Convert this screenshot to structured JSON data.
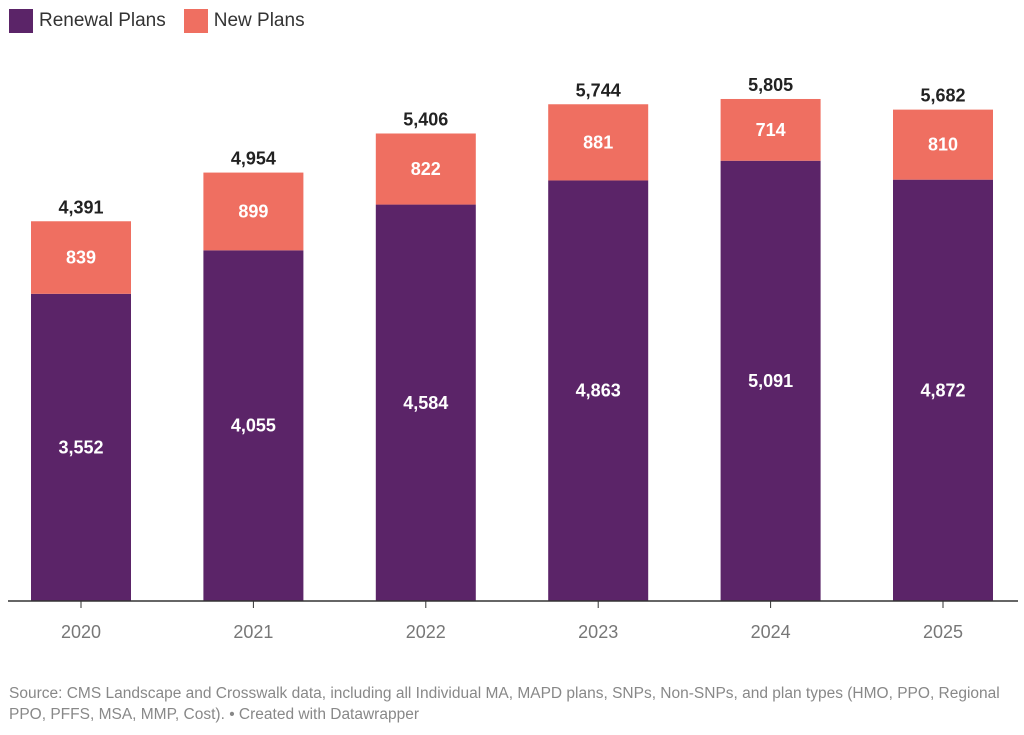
{
  "chart_data": {
    "type": "stacked-bar",
    "categories": [
      "2020",
      "2021",
      "2022",
      "2023",
      "2024",
      "2025"
    ],
    "series": [
      {
        "name": "Renewal Plans",
        "color": "#5b2468",
        "values": [
          3552,
          4055,
          4584,
          4863,
          5091,
          4872
        ]
      },
      {
        "name": "New Plans",
        "color": "#ef6f61",
        "values": [
          839,
          899,
          822,
          881,
          714,
          810
        ]
      }
    ],
    "totals": [
      4391,
      4954,
      5406,
      5744,
      5805,
      5682
    ],
    "grid": false,
    "legend": "top-left"
  },
  "legend": {
    "items": [
      {
        "label": "Renewal Plans",
        "color": "#5b2468"
      },
      {
        "label": "New Plans",
        "color": "#ef6f61"
      }
    ]
  },
  "footer": {
    "source": "Source: CMS Landscape and Crosswalk data, including all Individual MA, MAPD plans, SNPs, Non-SNPs, and plan types (HMO, PPO, Regional PPO, PFFS, MSA, MMP, Cost). • Created with Datawrapper"
  }
}
